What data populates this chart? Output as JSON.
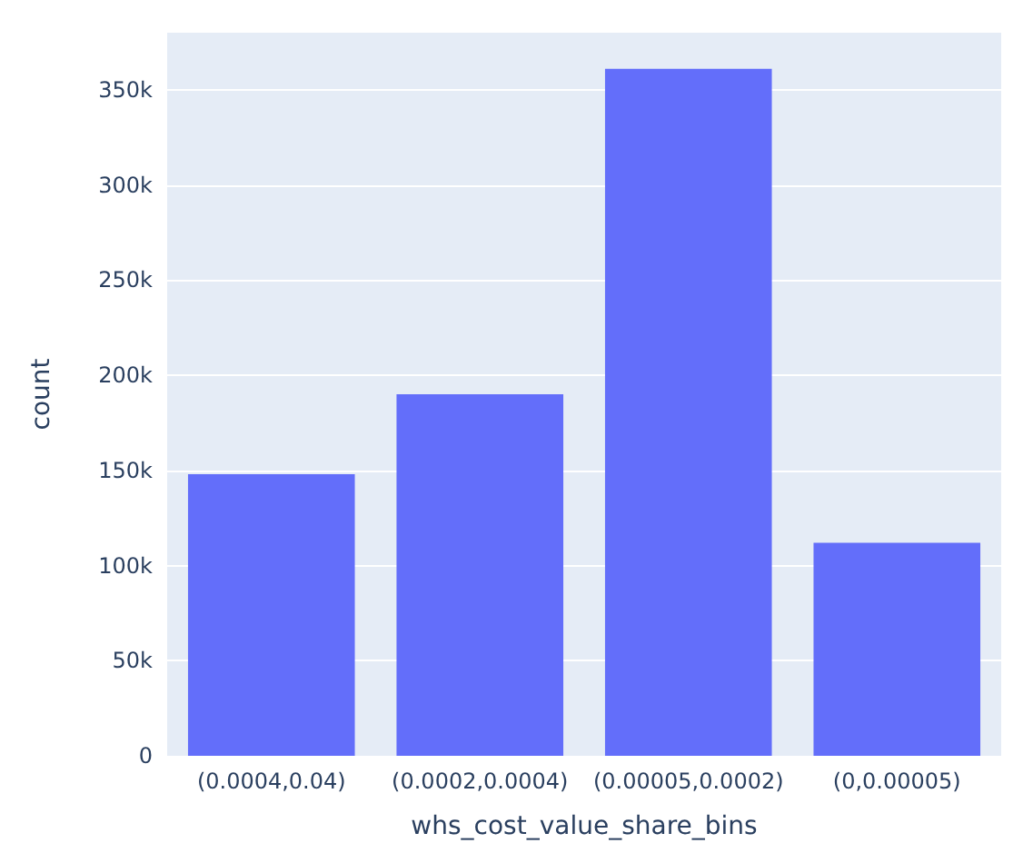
{
  "chart_data": {
    "type": "bar",
    "xlabel": "whs_cost_value_share_bins",
    "ylabel": "count",
    "categories": [
      "(0.0004,0.04)",
      "(0.0002,0.0004)",
      "(0.00005,0.0002)",
      "(0,0.00005)"
    ],
    "values": [
      148000,
      190000,
      361000,
      112000
    ],
    "color": "#636efa",
    "ylim": [
      0,
      380000
    ],
    "yticks": [
      0,
      {
        "value": 50000,
        "label": "50k"
      },
      {
        "value": 100000,
        "label": "100k"
      },
      {
        "value": 150000,
        "label": "150k"
      },
      {
        "value": 200000,
        "label": "200k"
      },
      {
        "value": 250000,
        "label": "250k"
      },
      {
        "value": 300000,
        "label": "300k"
      },
      {
        "value": 350000,
        "label": "350k"
      }
    ],
    "grid": "y"
  }
}
